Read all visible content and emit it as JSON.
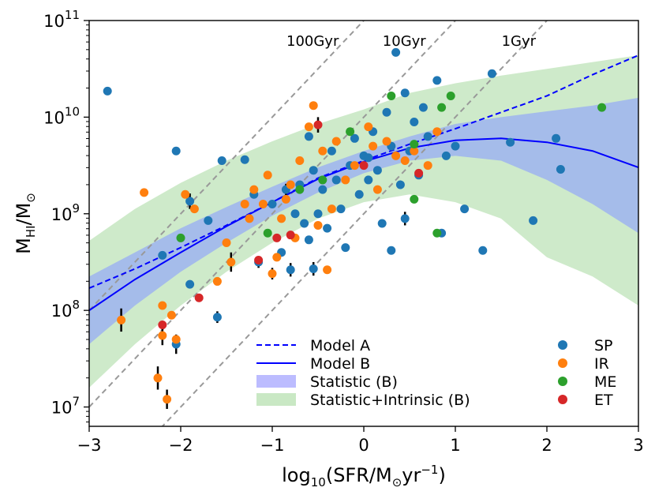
{
  "chart_data": {
    "type": "scatter",
    "title": "",
    "xlabel": {
      "base": "log",
      "sub": "10",
      "text": "(SFR/M",
      "sun": "⊙",
      "unit": "yr",
      "exp": "−1",
      "close": ")"
    },
    "ylabel": {
      "main": "M",
      "sub": "HI",
      "slash": "/M",
      "sun": "⊙"
    },
    "xlim": [
      -3,
      3
    ],
    "ylim_log10": [
      6.8,
      11
    ],
    "x_ticks": [
      {
        "value": -3,
        "label": "−3"
      },
      {
        "value": -2,
        "label": "−2"
      },
      {
        "value": -1,
        "label": "−1"
      },
      {
        "value": 0,
        "label": "0"
      },
      {
        "value": 1,
        "label": "1"
      },
      {
        "value": 2,
        "label": "2"
      },
      {
        "value": 3,
        "label": "3"
      }
    ],
    "y_ticks": [
      {
        "value": 7,
        "base": "10",
        "exp": "7"
      },
      {
        "value": 8,
        "base": "10",
        "exp": "8"
      },
      {
        "value": 9,
        "base": "10",
        "exp": "9"
      },
      {
        "value": 10,
        "base": "10",
        "exp": "10"
      },
      {
        "value": 11,
        "base": "10",
        "exp": "11"
      }
    ],
    "colors": {
      "SP": "#1f77b4",
      "IR": "#ff7f0e",
      "ME": "#2ca02c",
      "ET": "#d62728",
      "model": "#0000ff",
      "band_stat": "#8b9cff",
      "band_intr": "#c9e8c4",
      "isochrone": "#999999"
    },
    "isochrones": [
      {
        "label": "100Gyr",
        "offset": 11,
        "label_x": -0.5
      },
      {
        "label": "10Gyr",
        "offset": 10,
        "label_x": 0.55
      },
      {
        "label": "1Gyr",
        "offset": 9,
        "label_x": 1.85
      }
    ],
    "model_curve_x": [
      -3,
      -2.5,
      -2,
      -1.5,
      -1,
      -0.5,
      0,
      0.5,
      1,
      1.5,
      2,
      2.5,
      3
    ],
    "model_a_y": [
      8.23,
      8.43,
      8.65,
      8.88,
      9.12,
      9.37,
      9.55,
      9.72,
      9.88,
      10.05,
      10.22,
      10.44,
      10.64
    ],
    "model_b_y": [
      8.0,
      8.32,
      8.6,
      8.87,
      9.12,
      9.36,
      9.54,
      9.68,
      9.76,
      9.78,
      9.74,
      9.65,
      9.48
    ],
    "band_stat_lower": [
      7.65,
      8.05,
      8.4,
      8.7,
      8.98,
      9.22,
      9.42,
      9.55,
      9.6,
      9.55,
      9.35,
      9.1,
      8.8
    ],
    "band_stat_upper": [
      8.35,
      8.6,
      8.85,
      9.07,
      9.28,
      9.48,
      9.65,
      9.8,
      9.93,
      10.0,
      10.06,
      10.12,
      10.2
    ],
    "band_intr_lower": [
      7.2,
      7.65,
      8.05,
      8.4,
      8.7,
      8.95,
      9.12,
      9.2,
      9.12,
      8.95,
      8.55,
      8.35,
      8.05
    ],
    "band_intr_upper": [
      8.72,
      9.05,
      9.32,
      9.55,
      9.75,
      9.93,
      10.08,
      10.25,
      10.35,
      10.43,
      10.5,
      10.57,
      10.64
    ],
    "series": [
      {
        "name": "SP",
        "points": [
          [
            -2.8,
            10.27
          ],
          [
            -2.2,
            8.57
          ],
          [
            -2.05,
            7.65
          ],
          [
            -2.05,
            9.65
          ],
          [
            -1.9,
            9.13
          ],
          [
            -1.9,
            8.27
          ],
          [
            -1.7,
            8.93
          ],
          [
            -1.6,
            7.93
          ],
          [
            -1.55,
            9.55
          ],
          [
            -1.3,
            9.56
          ],
          [
            -1.2,
            9.2
          ],
          [
            -1.15,
            8.5
          ],
          [
            -1,
            9.1
          ],
          [
            -0.9,
            8.6
          ],
          [
            -0.85,
            9.25
          ],
          [
            -0.8,
            8.42
          ],
          [
            -0.75,
            9.0
          ],
          [
            -0.7,
            9.3
          ],
          [
            -0.65,
            8.9
          ],
          [
            -0.6,
            9.8
          ],
          [
            -0.55,
            9.45
          ],
          [
            -0.5,
            9.0
          ],
          [
            -0.45,
            9.25
          ],
          [
            -0.4,
            8.85
          ],
          [
            -0.35,
            9.65
          ],
          [
            -0.3,
            9.35
          ],
          [
            -0.25,
            9.05
          ],
          [
            -0.2,
            8.65
          ],
          [
            -0.15,
            9.5
          ],
          [
            -0.1,
            9.78
          ],
          [
            -0.05,
            9.2
          ],
          [
            0,
            9.6
          ],
          [
            0.05,
            9.35
          ],
          [
            0.1,
            9.85
          ],
          [
            0.15,
            9.45
          ],
          [
            0.2,
            8.9
          ],
          [
            0.25,
            10.05
          ],
          [
            0.3,
            9.7
          ],
          [
            0.35,
            10.67
          ],
          [
            0.4,
            9.3
          ],
          [
            0.45,
            10.25
          ],
          [
            0.5,
            9.65
          ],
          [
            0.55,
            9.95
          ],
          [
            0.6,
            9.4
          ],
          [
            0.65,
            10.1
          ],
          [
            0.7,
            9.8
          ],
          [
            0.8,
            10.38
          ],
          [
            0.85,
            8.8
          ],
          [
            0.9,
            9.6
          ],
          [
            1.0,
            9.7
          ],
          [
            1.1,
            9.05
          ],
          [
            1.3,
            8.62
          ],
          [
            1.4,
            10.45
          ],
          [
            1.6,
            9.74
          ],
          [
            1.85,
            8.93
          ],
          [
            2.1,
            9.78
          ],
          [
            2.15,
            9.46
          ],
          [
            -0.55,
            8.43
          ],
          [
            -0.6,
            8.73
          ],
          [
            0.3,
            8.62
          ],
          [
            0.45,
            8.95
          ],
          [
            0.05,
            9.58
          ]
        ]
      },
      {
        "name": "IR",
        "points": [
          [
            -2.65,
            7.9
          ],
          [
            -2.4,
            9.22
          ],
          [
            -2.25,
            7.3
          ],
          [
            -2.2,
            7.74
          ],
          [
            -2.2,
            8.05
          ],
          [
            -2.1,
            7.95
          ],
          [
            -2.15,
            7.08
          ],
          [
            -2.05,
            7.7
          ],
          [
            -1.95,
            9.2
          ],
          [
            -1.85,
            9.05
          ],
          [
            -1.6,
            8.3
          ],
          [
            -1.5,
            8.7
          ],
          [
            -1.45,
            8.5
          ],
          [
            -1.3,
            9.1
          ],
          [
            -1.25,
            8.95
          ],
          [
            -1.2,
            9.25
          ],
          [
            -1.1,
            9.1
          ],
          [
            -1.05,
            9.4
          ],
          [
            -0.95,
            8.55
          ],
          [
            -0.9,
            8.95
          ],
          [
            -0.85,
            9.15
          ],
          [
            -0.8,
            9.3
          ],
          [
            -0.75,
            8.75
          ],
          [
            -0.7,
            9.55
          ],
          [
            -0.6,
            9.9
          ],
          [
            -0.55,
            10.12
          ],
          [
            -0.5,
            8.88
          ],
          [
            -0.45,
            9.65
          ],
          [
            -0.4,
            8.42
          ],
          [
            -0.35,
            9.05
          ],
          [
            -0.3,
            9.75
          ],
          [
            -0.2,
            9.35
          ],
          [
            -0.1,
            9.5
          ],
          [
            0.05,
            9.9
          ],
          [
            0.1,
            9.7
          ],
          [
            0.15,
            9.25
          ],
          [
            0.25,
            9.75
          ],
          [
            0.35,
            9.6
          ],
          [
            0.45,
            9.55
          ],
          [
            0.55,
            9.65
          ],
          [
            0.7,
            9.5
          ],
          [
            0.8,
            9.85
          ],
          [
            -1.0,
            8.38
          ]
        ]
      },
      {
        "name": "ME",
        "points": [
          [
            -2.0,
            8.75
          ],
          [
            -1.05,
            8.8
          ],
          [
            -0.7,
            9.25
          ],
          [
            -0.45,
            9.35
          ],
          [
            -0.15,
            9.85
          ],
          [
            0.3,
            10.22
          ],
          [
            0.55,
            9.72
          ],
          [
            0.55,
            9.15
          ],
          [
            0.8,
            8.8
          ],
          [
            0.85,
            10.1
          ],
          [
            0.95,
            10.22
          ],
          [
            2.6,
            10.1
          ]
        ]
      },
      {
        "name": "ET",
        "points": [
          [
            -2.2,
            7.85
          ],
          [
            -1.8,
            8.13
          ],
          [
            -1.15,
            8.52
          ],
          [
            -0.95,
            8.75
          ],
          [
            -0.8,
            8.78
          ],
          [
            -0.5,
            9.92
          ],
          [
            0,
            9.5
          ],
          [
            0.6,
            9.42
          ]
        ]
      }
    ],
    "error_bar_points": [
      [
        -2.65,
        7.9,
        0.12
      ],
      [
        -2.25,
        7.3,
        0.12
      ],
      [
        -2.2,
        7.74,
        0.1
      ],
      [
        -2.15,
        7.08,
        0.1
      ],
      [
        -2.05,
        7.65,
        0.1
      ],
      [
        -1.9,
        9.13,
        0.08
      ],
      [
        -1.6,
        7.93,
        0.06
      ],
      [
        -1.45,
        8.5,
        0.1
      ],
      [
        -1.15,
        8.5,
        0.06
      ],
      [
        -1.0,
        8.38,
        0.06
      ],
      [
        -0.8,
        8.42,
        0.07
      ],
      [
        -0.55,
        8.43,
        0.07
      ],
      [
        -0.5,
        9.92,
        0.08
      ],
      [
        0.45,
        8.95,
        0.07
      ],
      [
        -0.85,
        9.25,
        0.06
      ]
    ],
    "legend": [
      {
        "kind": "dash",
        "label": "Model A"
      },
      {
        "kind": "line",
        "label": "Model B"
      },
      {
        "kind": "patch_stat",
        "label": "Statistic (B)"
      },
      {
        "kind": "patch_intr",
        "label": "Statistic+Intrinsic (B)"
      }
    ],
    "legend_position": "bottom-center",
    "marker_legend": [
      {
        "series": "SP",
        "label": "SP"
      },
      {
        "series": "IR",
        "label": "IR"
      },
      {
        "series": "ME",
        "label": "ME"
      },
      {
        "series": "ET",
        "label": "ET"
      }
    ],
    "marker_legend_position": "bottom-right"
  }
}
